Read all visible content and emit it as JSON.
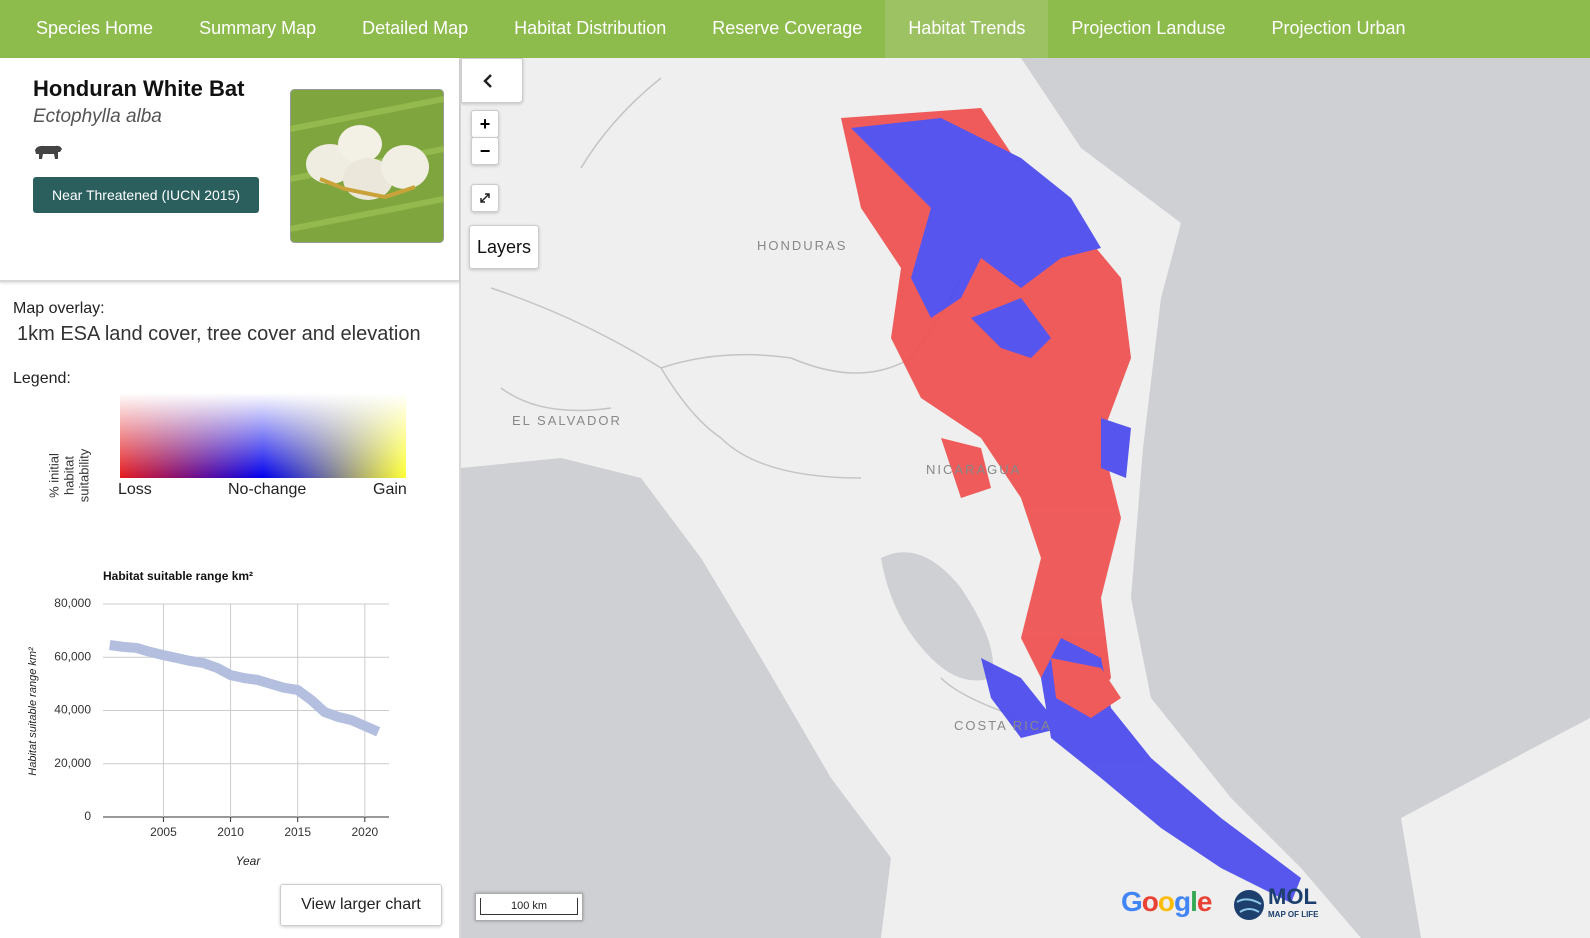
{
  "nav": {
    "items": [
      "Species Home",
      "Summary Map",
      "Detailed Map",
      "Habitat Distribution",
      "Reserve Coverage",
      "Habitat Trends",
      "Projection Landuse",
      "Projection Urban"
    ]
  },
  "species": {
    "common_name": "Honduran White Bat",
    "scientific_name": "Ectophylla alba",
    "status": "Near Threatened (IUCN 2015)"
  },
  "overlay": {
    "label": "Map overlay:",
    "value": "1km ESA land cover, tree cover and elevation"
  },
  "legend": {
    "label": "Legend:",
    "axis_label": "% initial habitat suitability",
    "loss": "Loss",
    "no_change": "No-change",
    "gain": "Gain"
  },
  "chart": {
    "type": "line",
    "title": "Habitat suitable range km²",
    "y_label": "Habitat suitable range km²",
    "x_label": "Year",
    "x": [
      2001,
      2002,
      2003,
      2004,
      2005,
      2006,
      2007,
      2008,
      2009,
      2010,
      2011,
      2012,
      2013,
      2014,
      2015,
      2016,
      2017,
      2018,
      2019,
      2020,
      2021
    ],
    "values": [
      64600,
      63900,
      63500,
      62000,
      60800,
      59700,
      58600,
      57800,
      56000,
      53300,
      52200,
      51500,
      50000,
      48500,
      47700,
      44000,
      39400,
      37600,
      36400,
      34200,
      32000
    ],
    "color": "#b4bfe0",
    "xlim": [
      2000.5,
      2021.8
    ],
    "xticks": [
      2005,
      2010,
      2015,
      2020
    ],
    "ylim": [
      0,
      80000
    ],
    "yticks": [
      0,
      {
        "value": 20000,
        "label": "20,000"
      },
      {
        "value": 40000,
        "label": "40,000"
      },
      {
        "value": 60000,
        "label": "60,000"
      },
      {
        "value": 80000,
        "label": "80,000"
      }
    ],
    "grid": true
  },
  "chart_button": "View larger chart",
  "map": {
    "zoom_in": "+",
    "zoom_out": "−",
    "layers": "Layers",
    "labels": [
      "HONDURAS",
      "EL SALVADOR",
      "NICARAGUA",
      "COSTA RICA"
    ],
    "scale": "100 km",
    "google": "Google",
    "mol": "MOL",
    "mol_sub": "MAP OF LIFE"
  }
}
